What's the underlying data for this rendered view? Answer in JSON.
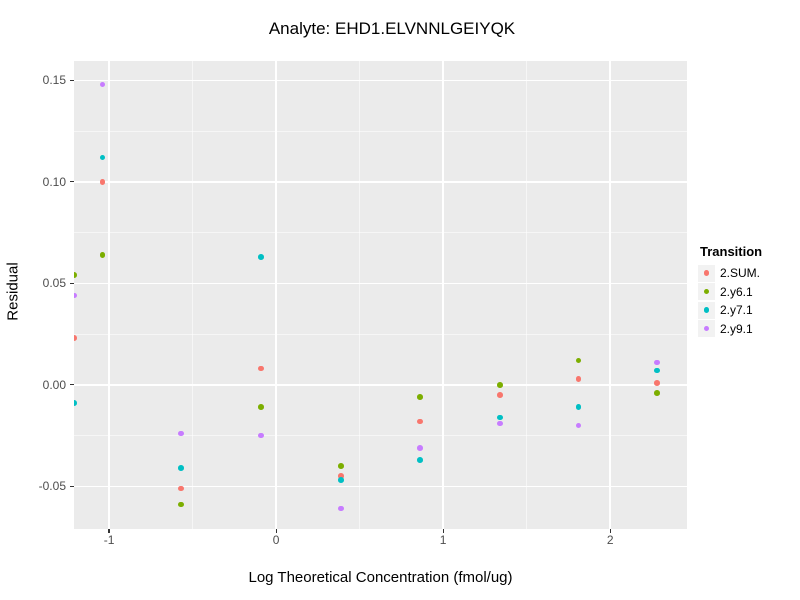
{
  "title": "Analyte: EHD1.ELVNNLGEIYQK",
  "colors": {
    "panel_background": "#EBEBEB",
    "grid_major": "#FFFFFF",
    "axis_text": "#4D4D4D",
    "legend_key_background": "#F2F2F2"
  },
  "chart_data": {
    "type": "scatter",
    "title": "Analyte: EHD1.ELVNNLGEIYQK",
    "xlabel": "Log Theoretical Concentration (fmol/ug)",
    "ylabel": "Residual",
    "legend_title": "Transition",
    "legend_position": "right",
    "grid": true,
    "xlim": [
      -1.21,
      2.46
    ],
    "ylim": [
      -0.071,
      0.1595
    ],
    "x_ticks": [
      -1,
      0,
      1,
      2
    ],
    "x_tick_labels": [
      "-1",
      "0",
      "1",
      "2"
    ],
    "x_minor_ticks": [
      -0.5,
      0.5,
      1.5
    ],
    "y_ticks": [
      -0.05,
      0.0,
      0.05,
      0.1,
      0.15
    ],
    "y_tick_labels": [
      "-0.05",
      "0.00",
      "0.05",
      "0.10",
      "0.15"
    ],
    "y_minor_ticks": [
      -0.025,
      0.025,
      0.075,
      0.125
    ],
    "x": [
      -1.21,
      -1.04,
      -0.57,
      -0.09,
      0.39,
      0.86,
      1.34,
      1.81,
      2.28
    ],
    "series": [
      {
        "name": "2.SUM.",
        "color": "#F8766D",
        "values": [
          0.023,
          0.1,
          -0.051,
          0.008,
          -0.045,
          -0.018,
          -0.005,
          0.003,
          0.001
        ]
      },
      {
        "name": "2.y6.1",
        "color": "#7CAE00",
        "values": [
          0.054,
          0.064,
          -0.059,
          -0.011,
          -0.04,
          -0.006,
          0.0,
          0.012,
          -0.004
        ]
      },
      {
        "name": "2.y7.1",
        "color": "#00BFC4",
        "values": [
          -0.009,
          0.112,
          -0.041,
          0.063,
          -0.047,
          -0.037,
          -0.016,
          -0.011,
          0.007
        ]
      },
      {
        "name": "2.y9.1",
        "color": "#C77CFF",
        "values": [
          0.044,
          0.148,
          -0.024,
          -0.025,
          -0.061,
          -0.031,
          -0.019,
          -0.02,
          0.011
        ]
      }
    ]
  }
}
